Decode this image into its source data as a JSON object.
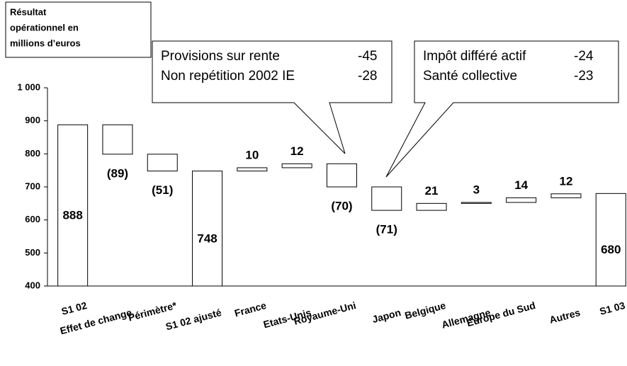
{
  "chart_data": {
    "type": "waterfall",
    "ylabel": [
      "Résultat",
      "opérationnel en",
      "millions d’euros"
    ],
    "categories": [
      "S1 02",
      "Effet de change",
      "Périmètre*",
      "S1 02 ajusté",
      "France",
      "Etats-Unis",
      "Royaume-Uni",
      "Japon",
      "Belgique",
      "Allemagne",
      "Europe du Sud",
      "Autres",
      "S1 03"
    ],
    "kinds": [
      "total",
      "delta",
      "delta",
      "total",
      "delta",
      "delta",
      "delta",
      "delta",
      "delta",
      "delta",
      "delta",
      "delta",
      "total"
    ],
    "values": [
      888,
      -89,
      -51,
      748,
      10,
      12,
      -70,
      -71,
      21,
      3,
      14,
      12,
      680
    ],
    "value_labels": [
      "888",
      "(89)",
      "(51)",
      "748",
      "10",
      "12",
      "(70)",
      "(71)",
      "21",
      "3",
      "14",
      "12",
      "680"
    ],
    "color": "#ffffff",
    "ylim": [
      400,
      1000
    ],
    "yticks": [
      400,
      500,
      600,
      700,
      800,
      900,
      {
        "value": 1000,
        "label": "1 000"
      }
    ],
    "callouts": [
      {
        "rows": [
          {
            "text": "Provisions sur rente",
            "value": -45
          },
          {
            "text": "Non repétition 2002 IE",
            "value": -28
          }
        ]
      },
      {
        "rows": [
          {
            "text": "Impôt différé actif",
            "value": -24
          },
          {
            "text": "Santé collective",
            "value": -23
          }
        ]
      }
    ]
  }
}
